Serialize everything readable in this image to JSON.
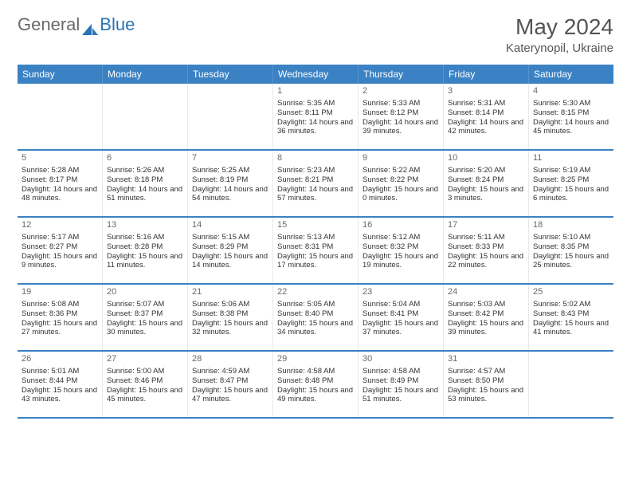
{
  "brand": {
    "part1": "General",
    "part2": "Blue"
  },
  "title": {
    "month": "May 2024",
    "location": "Katerynopil, Ukraine"
  },
  "colors": {
    "accent": "#3b82c4",
    "text": "#333333",
    "muted": "#6a6a6a",
    "bg": "#ffffff"
  },
  "day_names": [
    "Sunday",
    "Monday",
    "Tuesday",
    "Wednesday",
    "Thursday",
    "Friday",
    "Saturday"
  ],
  "weeks": [
    [
      null,
      null,
      null,
      {
        "n": "1",
        "sr": "5:35 AM",
        "ss": "8:11 PM",
        "dl": "14 hours and 36 minutes."
      },
      {
        "n": "2",
        "sr": "5:33 AM",
        "ss": "8:12 PM",
        "dl": "14 hours and 39 minutes."
      },
      {
        "n": "3",
        "sr": "5:31 AM",
        "ss": "8:14 PM",
        "dl": "14 hours and 42 minutes."
      },
      {
        "n": "4",
        "sr": "5:30 AM",
        "ss": "8:15 PM",
        "dl": "14 hours and 45 minutes."
      }
    ],
    [
      {
        "n": "5",
        "sr": "5:28 AM",
        "ss": "8:17 PM",
        "dl": "14 hours and 48 minutes."
      },
      {
        "n": "6",
        "sr": "5:26 AM",
        "ss": "8:18 PM",
        "dl": "14 hours and 51 minutes."
      },
      {
        "n": "7",
        "sr": "5:25 AM",
        "ss": "8:19 PM",
        "dl": "14 hours and 54 minutes."
      },
      {
        "n": "8",
        "sr": "5:23 AM",
        "ss": "8:21 PM",
        "dl": "14 hours and 57 minutes."
      },
      {
        "n": "9",
        "sr": "5:22 AM",
        "ss": "8:22 PM",
        "dl": "15 hours and 0 minutes."
      },
      {
        "n": "10",
        "sr": "5:20 AM",
        "ss": "8:24 PM",
        "dl": "15 hours and 3 minutes."
      },
      {
        "n": "11",
        "sr": "5:19 AM",
        "ss": "8:25 PM",
        "dl": "15 hours and 6 minutes."
      }
    ],
    [
      {
        "n": "12",
        "sr": "5:17 AM",
        "ss": "8:27 PM",
        "dl": "15 hours and 9 minutes."
      },
      {
        "n": "13",
        "sr": "5:16 AM",
        "ss": "8:28 PM",
        "dl": "15 hours and 11 minutes."
      },
      {
        "n": "14",
        "sr": "5:15 AM",
        "ss": "8:29 PM",
        "dl": "15 hours and 14 minutes."
      },
      {
        "n": "15",
        "sr": "5:13 AM",
        "ss": "8:31 PM",
        "dl": "15 hours and 17 minutes."
      },
      {
        "n": "16",
        "sr": "5:12 AM",
        "ss": "8:32 PM",
        "dl": "15 hours and 19 minutes."
      },
      {
        "n": "17",
        "sr": "5:11 AM",
        "ss": "8:33 PM",
        "dl": "15 hours and 22 minutes."
      },
      {
        "n": "18",
        "sr": "5:10 AM",
        "ss": "8:35 PM",
        "dl": "15 hours and 25 minutes."
      }
    ],
    [
      {
        "n": "19",
        "sr": "5:08 AM",
        "ss": "8:36 PM",
        "dl": "15 hours and 27 minutes."
      },
      {
        "n": "20",
        "sr": "5:07 AM",
        "ss": "8:37 PM",
        "dl": "15 hours and 30 minutes."
      },
      {
        "n": "21",
        "sr": "5:06 AM",
        "ss": "8:38 PM",
        "dl": "15 hours and 32 minutes."
      },
      {
        "n": "22",
        "sr": "5:05 AM",
        "ss": "8:40 PM",
        "dl": "15 hours and 34 minutes."
      },
      {
        "n": "23",
        "sr": "5:04 AM",
        "ss": "8:41 PM",
        "dl": "15 hours and 37 minutes."
      },
      {
        "n": "24",
        "sr": "5:03 AM",
        "ss": "8:42 PM",
        "dl": "15 hours and 39 minutes."
      },
      {
        "n": "25",
        "sr": "5:02 AM",
        "ss": "8:43 PM",
        "dl": "15 hours and 41 minutes."
      }
    ],
    [
      {
        "n": "26",
        "sr": "5:01 AM",
        "ss": "8:44 PM",
        "dl": "15 hours and 43 minutes."
      },
      {
        "n": "27",
        "sr": "5:00 AM",
        "ss": "8:46 PM",
        "dl": "15 hours and 45 minutes."
      },
      {
        "n": "28",
        "sr": "4:59 AM",
        "ss": "8:47 PM",
        "dl": "15 hours and 47 minutes."
      },
      {
        "n": "29",
        "sr": "4:58 AM",
        "ss": "8:48 PM",
        "dl": "15 hours and 49 minutes."
      },
      {
        "n": "30",
        "sr": "4:58 AM",
        "ss": "8:49 PM",
        "dl": "15 hours and 51 minutes."
      },
      {
        "n": "31",
        "sr": "4:57 AM",
        "ss": "8:50 PM",
        "dl": "15 hours and 53 minutes."
      },
      null
    ]
  ],
  "labels": {
    "sunrise": "Sunrise:",
    "sunset": "Sunset:",
    "daylight": "Daylight:"
  }
}
